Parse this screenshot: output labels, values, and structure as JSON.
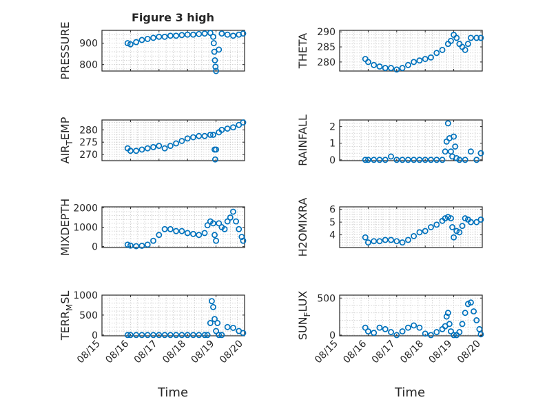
{
  "figure": {
    "title": "Figure 3 high",
    "xlabel": "Time"
  },
  "colors": {
    "marker": "#0072bd",
    "axis": "#262626",
    "grid": "#c8c8c8"
  },
  "chart_data": [
    {
      "type": "scatter",
      "ylabel": "PRESSURE",
      "ylabel_sub": "",
      "ylim": [
        770,
        960
      ],
      "yticks": [
        800,
        900
      ],
      "xlim": [
        0,
        5
      ],
      "xticks": [
        "08/15",
        "08/16",
        "08/17",
        "08/18",
        "08/19",
        "08/20"
      ],
      "show_xticks": false,
      "grid": true,
      "series": [
        {
          "x": [
            0.9,
            1.0,
            1.2,
            1.4,
            1.6,
            1.8,
            2.0,
            2.2,
            2.4,
            2.6,
            2.8,
            3.0,
            3.2,
            3.4,
            3.6,
            3.8,
            3.9,
            3.92,
            3.94,
            3.96,
            3.98,
            4.0,
            4.1,
            4.2,
            4.4,
            4.6,
            4.8,
            4.95
          ],
          "y": [
            900,
            895,
            905,
            915,
            920,
            925,
            930,
            930,
            935,
            935,
            938,
            940,
            940,
            943,
            945,
            948,
            930,
            900,
            860,
            820,
            790,
            770,
            870,
            945,
            940,
            935,
            940,
            945
          ]
        }
      ]
    },
    {
      "type": "scatter",
      "ylabel": "THETA",
      "ylabel_sub": "",
      "ylim": [
        277,
        290.5
      ],
      "yticks": [
        280,
        285,
        290
      ],
      "xlim": [
        0,
        5
      ],
      "xticks": [
        "08/15",
        "08/16",
        "08/17",
        "08/18",
        "08/19",
        "08/20"
      ],
      "show_xticks": false,
      "grid": true,
      "series": [
        {
          "x": [
            0.9,
            1.0,
            1.2,
            1.4,
            1.6,
            1.8,
            2.0,
            2.2,
            2.4,
            2.6,
            2.8,
            3.0,
            3.2,
            3.4,
            3.6,
            3.8,
            3.9,
            4.0,
            4.1,
            4.2,
            4.3,
            4.4,
            4.5,
            4.6,
            4.8,
            4.95
          ],
          "y": [
            281,
            280,
            279,
            278.5,
            278,
            278,
            277.5,
            278,
            279,
            280,
            280.5,
            281,
            281.5,
            283,
            284,
            286,
            287,
            289,
            288,
            286,
            285,
            284,
            286,
            288,
            288,
            288
          ]
        }
      ]
    },
    {
      "type": "scatter",
      "ylabel": "AIR",
      "ylabel_sub": "T",
      "ylabel_rest": "EMP",
      "ylim": [
        267.5,
        284
      ],
      "yticks": [
        270,
        275,
        280
      ],
      "xlim": [
        0,
        5
      ],
      "xticks": [
        "08/15",
        "08/16",
        "08/17",
        "08/18",
        "08/19",
        "08/20"
      ],
      "show_xticks": false,
      "grid": true,
      "series": [
        {
          "x": [
            0.9,
            1.0,
            1.2,
            1.4,
            1.6,
            1.8,
            2.0,
            2.2,
            2.4,
            2.6,
            2.8,
            3.0,
            3.2,
            3.4,
            3.6,
            3.8,
            3.9,
            3.95,
            3.97,
            4.0,
            4.1,
            4.2,
            4.4,
            4.6,
            4.8,
            4.95
          ],
          "y": [
            272.5,
            271.5,
            271.5,
            272,
            272.5,
            273,
            273.5,
            272.5,
            273.5,
            274.5,
            275.5,
            276.5,
            277,
            277.5,
            277.5,
            278,
            278,
            272,
            268,
            272,
            279,
            280,
            280.5,
            281,
            282,
            283
          ]
        }
      ]
    },
    {
      "type": "scatter",
      "ylabel": "RAINFALL",
      "ylabel_sub": "",
      "ylim": [
        -0.05,
        2.4
      ],
      "yticks": [
        0,
        1,
        2
      ],
      "xlim": [
        0,
        5
      ],
      "xticks": [
        "08/15",
        "08/16",
        "08/17",
        "08/18",
        "08/19",
        "08/20"
      ],
      "show_xticks": false,
      "grid": true,
      "series": [
        {
          "x": [
            0.9,
            1.0,
            1.2,
            1.4,
            1.6,
            1.8,
            2.0,
            2.2,
            2.4,
            2.6,
            2.8,
            3.0,
            3.2,
            3.4,
            3.6,
            3.7,
            3.75,
            3.8,
            3.85,
            3.9,
            3.95,
            4.0,
            4.05,
            4.1,
            4.2,
            4.4,
            4.6,
            4.8,
            4.95
          ],
          "y": [
            0,
            0,
            0,
            0,
            0,
            0.2,
            0,
            0,
            0,
            0,
            0,
            0,
            0,
            0,
            0,
            0.5,
            1.1,
            2.2,
            1.3,
            0.5,
            0.2,
            1.4,
            0.8,
            0.1,
            0,
            0,
            0.5,
            0,
            0.4
          ]
        }
      ]
    },
    {
      "type": "scatter",
      "ylabel": "MIXDEPTH",
      "ylabel_sub": "",
      "ylim": [
        -50,
        2050
      ],
      "yticks": [
        0,
        1000,
        2000
      ],
      "xlim": [
        0,
        5
      ],
      "xticks": [
        "08/15",
        "08/16",
        "08/17",
        "08/18",
        "08/19",
        "08/20"
      ],
      "show_xticks": false,
      "grid": true,
      "series": [
        {
          "x": [
            0.9,
            1.0,
            1.2,
            1.4,
            1.6,
            1.8,
            2.0,
            2.2,
            2.4,
            2.6,
            2.8,
            3.0,
            3.2,
            3.4,
            3.6,
            3.7,
            3.8,
            3.9,
            3.95,
            4.0,
            4.1,
            4.2,
            4.3,
            4.4,
            4.5,
            4.6,
            4.7,
            4.8,
            4.9,
            4.95
          ],
          "y": [
            100,
            50,
            20,
            40,
            100,
            300,
            600,
            900,
            900,
            800,
            800,
            700,
            650,
            600,
            700,
            1100,
            1300,
            1200,
            600,
            300,
            1200,
            1000,
            900,
            1300,
            1500,
            1800,
            1300,
            900,
            500,
            300
          ]
        }
      ]
    },
    {
      "type": "scatter",
      "ylabel": "H2OMIXRA",
      "ylabel_sub": "",
      "ylim": [
        3,
        6.2
      ],
      "yticks": [
        4,
        5,
        6
      ],
      "xlim": [
        0,
        5
      ],
      "xticks": [
        "08/15",
        "08/16",
        "08/17",
        "08/18",
        "08/19",
        "08/20"
      ],
      "show_xticks": false,
      "grid": true,
      "series": [
        {
          "x": [
            0.9,
            1.0,
            1.2,
            1.4,
            1.6,
            1.8,
            2.0,
            2.2,
            2.4,
            2.6,
            2.8,
            3.0,
            3.2,
            3.4,
            3.6,
            3.7,
            3.8,
            3.9,
            3.95,
            4.0,
            4.1,
            4.2,
            4.3,
            4.4,
            4.5,
            4.6,
            4.8,
            4.95
          ],
          "y": [
            3.8,
            3.4,
            3.5,
            3.5,
            3.6,
            3.6,
            3.5,
            3.4,
            3.6,
            3.9,
            4.2,
            4.3,
            4.6,
            4.8,
            5.1,
            5.3,
            5.4,
            5.3,
            4.6,
            3.8,
            4.3,
            4.2,
            4.7,
            5.3,
            5.2,
            5.0,
            5.0,
            5.2
          ]
        }
      ]
    },
    {
      "type": "scatter",
      "ylabel": "TERR",
      "ylabel_sub": "M",
      "ylabel_rest": "SL",
      "ylim": [
        -20,
        1000
      ],
      "yticks": [
        0,
        500,
        1000
      ],
      "xlim": [
        0,
        5
      ],
      "xticks": [
        "08/15",
        "08/16",
        "08/17",
        "08/18",
        "08/19",
        "08/20"
      ],
      "show_xticks": true,
      "grid": true,
      "series": [
        {
          "x": [
            0.9,
            1.0,
            1.2,
            1.4,
            1.6,
            1.8,
            2.0,
            2.2,
            2.4,
            2.6,
            2.8,
            3.0,
            3.2,
            3.4,
            3.6,
            3.7,
            3.8,
            3.85,
            3.9,
            3.95,
            4.0,
            4.05,
            4.1,
            4.2,
            4.4,
            4.6,
            4.8,
            4.95
          ],
          "y": [
            0,
            0,
            0,
            0,
            0,
            0,
            0,
            0,
            0,
            0,
            0,
            0,
            0,
            0,
            0,
            0,
            300,
            850,
            700,
            400,
            100,
            300,
            0,
            0,
            200,
            180,
            100,
            50
          ]
        }
      ]
    },
    {
      "type": "scatter",
      "ylabel": "SUN",
      "ylabel_sub": "F",
      "ylabel_rest": "LUX",
      "ylim": [
        -10,
        540
      ],
      "yticks": [
        0,
        500
      ],
      "xlim": [
        0,
        5
      ],
      "xticks": [
        "08/15",
        "08/16",
        "08/17",
        "08/18",
        "08/19",
        "08/20"
      ],
      "show_xticks": true,
      "grid": true,
      "series": [
        {
          "x": [
            0.9,
            1.0,
            1.2,
            1.4,
            1.6,
            1.8,
            2.0,
            2.2,
            2.4,
            2.6,
            2.8,
            3.0,
            3.2,
            3.4,
            3.6,
            3.7,
            3.75,
            3.8,
            3.85,
            3.9,
            4.0,
            4.1,
            4.2,
            4.3,
            4.4,
            4.5,
            4.6,
            4.7,
            4.8,
            4.9,
            4.95
          ],
          "y": [
            100,
            50,
            30,
            100,
            80,
            40,
            0,
            50,
            100,
            130,
            100,
            20,
            0,
            40,
            80,
            120,
            250,
            300,
            150,
            50,
            0,
            0,
            40,
            150,
            300,
            420,
            440,
            320,
            200,
            80,
            10
          ]
        }
      ]
    }
  ]
}
